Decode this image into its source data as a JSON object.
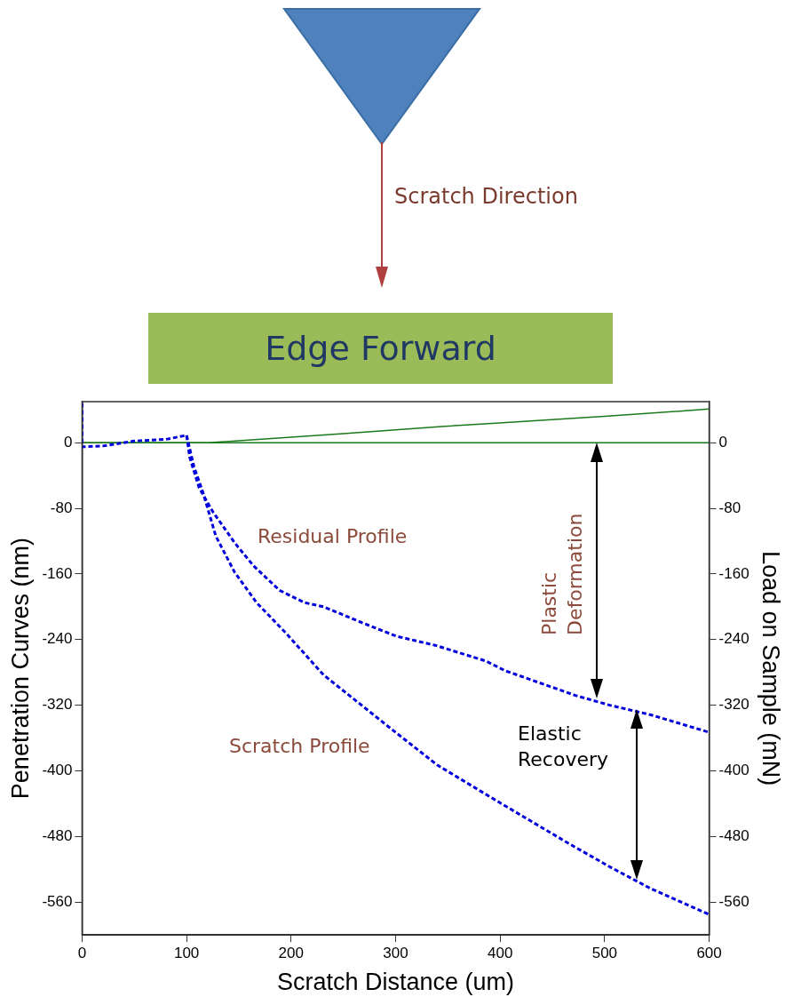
{
  "chart_data": {
    "type": "line",
    "xlabel": "Scratch Distance (um)",
    "ylabel": "Penetration Curves (nm)",
    "y2label": "Load on Sample (mN)",
    "xlim": [
      0,
      600
    ],
    "xticks": [
      0,
      100,
      200,
      300,
      400,
      500,
      600
    ],
    "ylim": [
      -600,
      50
    ],
    "yticks": [
      0,
      -80,
      -160,
      -240,
      -320,
      -400,
      -480,
      -560
    ],
    "y2lim": [
      -600,
      50
    ],
    "y2ticks": [
      0,
      -80,
      -160,
      -240,
      -320,
      -400,
      -480,
      -560
    ],
    "grid": false,
    "legend": false,
    "marker": "none",
    "annotations": [
      "Scratch Direction",
      "Edge Forward",
      "Residual Profile",
      "Scratch Profile",
      "Plastic Deformation",
      "Elastic Recovery"
    ],
    "series": [
      {
        "color": "#0000dd",
        "line_style": "dashed",
        "x": [
          0,
          0,
          20,
          50,
          80,
          100,
          103,
          112,
          125,
          146,
          164,
          189,
          213,
          231,
          271,
          301,
          338,
          386,
          405,
          472,
          505,
          545,
          600
        ],
        "values": [
          48,
          -5,
          -4,
          2,
          4,
          9,
          -18,
          -55,
          -84,
          -122,
          -150,
          -180,
          -195,
          -200,
          -221,
          -236,
          -247,
          -266,
          -278,
          -308,
          -320,
          -332,
          -353
        ]
      },
      {
        "color": "#0000dd",
        "line_style": "dashed",
        "x": [
          100,
          107,
          116,
          128,
          146,
          167,
          195,
          231,
          296,
          340,
          400,
          465,
          505,
          545,
          600
        ],
        "values": [
          9,
          -29,
          -62,
          -114,
          -158,
          -195,
          -232,
          -283,
          -349,
          -393,
          -439,
          -488,
          -517,
          -544,
          -575
        ]
      },
      {
        "color": "#1a7a1a",
        "line_style": "solid",
        "axis": "y2",
        "x": [
          0,
          100,
          121,
          250,
          347,
          399,
          500,
          600
        ],
        "values": [
          0,
          0,
          0,
          11,
          20,
          24,
          32,
          41
        ]
      },
      {
        "color": "#1a7a1a",
        "line_style": "solid",
        "axis": "y2",
        "x": [
          0,
          600
        ],
        "values": [
          0,
          0
        ]
      }
    ]
  }
}
